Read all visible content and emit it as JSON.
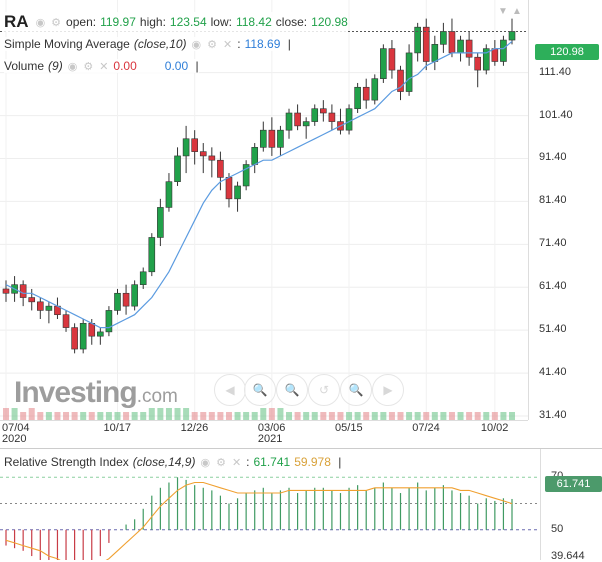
{
  "symbol": "RA",
  "ohlc": {
    "open_label": "open:",
    "open": "119.97",
    "high_label": "high:",
    "high": "123.54",
    "low_label": "low:",
    "low": "118.42",
    "close_label": "close:",
    "close": "120.98"
  },
  "sma": {
    "label": "Simple Moving Average",
    "params": "(close,10)",
    "value": "118.69"
  },
  "volume": {
    "label": "Volume",
    "params": "(9)",
    "value1": "0.00",
    "value2": "0.00"
  },
  "current_price": "120.98",
  "price_axis": [
    "111.40",
    "101.40",
    "91.40",
    "81.40",
    "71.40",
    "61.40",
    "51.40",
    "41.40",
    "31.40"
  ],
  "time_axis": [
    {
      "label": "07/04",
      "sub": "2020"
    },
    {
      "label": "10/17",
      "sub": ""
    },
    {
      "label": "12/26",
      "sub": ""
    },
    {
      "label": "03/06",
      "sub": "2021"
    },
    {
      "label": "05/15",
      "sub": ""
    },
    {
      "label": "07/24",
      "sub": ""
    },
    {
      "label": "10/02",
      "sub": ""
    }
  ],
  "rsi": {
    "label": "Relative Strength Index",
    "params": "(close,14,9)",
    "value": "61.741",
    "signal": "59.978",
    "current": "61.741",
    "axis": [
      "70",
      "50",
      "39.644"
    ]
  },
  "watermark": {
    "text": "Investing",
    "suffix": ".com"
  },
  "colors": {
    "up": "#21a14a",
    "down": "#d9363e",
    "sma": "#2f7ed8",
    "rsi_signal": "#f0a030",
    "price_tag": "#2daf5a"
  },
  "chart_data": {
    "type": "candlestick",
    "title": "RA",
    "ylim": [
      31.4,
      126
    ],
    "candles": [
      [
        61,
        63,
        58,
        60
      ],
      [
        60,
        64,
        58,
        62
      ],
      [
        62,
        63,
        57,
        59
      ],
      [
        59,
        61,
        56,
        58
      ],
      [
        58,
        59,
        54,
        56
      ],
      [
        56,
        58,
        53,
        57
      ],
      [
        57,
        59,
        54,
        55
      ],
      [
        55,
        56,
        51,
        52
      ],
      [
        52,
        53,
        46,
        47
      ],
      [
        47,
        54,
        46,
        53
      ],
      [
        53,
        54,
        48,
        50
      ],
      [
        50,
        52,
        48,
        51
      ],
      [
        51,
        57,
        50,
        56
      ],
      [
        56,
        61,
        55,
        60
      ],
      [
        60,
        62,
        55,
        57
      ],
      [
        57,
        63,
        56,
        62
      ],
      [
        62,
        66,
        61,
        65
      ],
      [
        65,
        74,
        64,
        73
      ],
      [
        73,
        82,
        71,
        80
      ],
      [
        80,
        88,
        79,
        86
      ],
      [
        86,
        94,
        85,
        92
      ],
      [
        92,
        99,
        88,
        96
      ],
      [
        96,
        98,
        90,
        93
      ],
      [
        93,
        95,
        88,
        92
      ],
      [
        92,
        94,
        87,
        91
      ],
      [
        91,
        93,
        84,
        87
      ],
      [
        87,
        88,
        80,
        82
      ],
      [
        82,
        86,
        79,
        85
      ],
      [
        85,
        91,
        84,
        90
      ],
      [
        90,
        95,
        88,
        94
      ],
      [
        94,
        100,
        93,
        98
      ],
      [
        98,
        101,
        92,
        94
      ],
      [
        94,
        99,
        92,
        98
      ],
      [
        98,
        103,
        96,
        102
      ],
      [
        102,
        104,
        98,
        99
      ],
      [
        99,
        101,
        96,
        100
      ],
      [
        100,
        104,
        99,
        103
      ],
      [
        103,
        105,
        100,
        102
      ],
      [
        102,
        104,
        98,
        100
      ],
      [
        100,
        103,
        97,
        98
      ],
      [
        98,
        104,
        97,
        103
      ],
      [
        103,
        109,
        102,
        108
      ],
      [
        108,
        110,
        103,
        105
      ],
      [
        105,
        111,
        104,
        110
      ],
      [
        110,
        118,
        109,
        117
      ],
      [
        117,
        119,
        110,
        112
      ],
      [
        112,
        113,
        105,
        107
      ],
      [
        107,
        118,
        106,
        116
      ],
      [
        116,
        123,
        114,
        122
      ],
      [
        122,
        124,
        112,
        114
      ],
      [
        114,
        120,
        112,
        118
      ],
      [
        118,
        123,
        116,
        121
      ],
      [
        121,
        124,
        115,
        116
      ],
      [
        116,
        120,
        114,
        119
      ],
      [
        119,
        121,
        113,
        115
      ],
      [
        115,
        116,
        108,
        112
      ],
      [
        112,
        118,
        111,
        117
      ],
      [
        117,
        119,
        113,
        114
      ],
      [
        114,
        120,
        113,
        119
      ],
      [
        119,
        124,
        118,
        121
      ]
    ],
    "sma": [
      62,
      61,
      60,
      60,
      59,
      58,
      57,
      56,
      55,
      54,
      53,
      52,
      52,
      53,
      54,
      55,
      57,
      59,
      62,
      65,
      69,
      73,
      77,
      81,
      84,
      86,
      87,
      88,
      89,
      90,
      91,
      91,
      92,
      93,
      94,
      95,
      96,
      97,
      98,
      99,
      100,
      101,
      102,
      103,
      105,
      107,
      108,
      110,
      111,
      113,
      114,
      115,
      116,
      116,
      116,
      116,
      116,
      117,
      117,
      118.69
    ],
    "volume": [
      3,
      3,
      2,
      3,
      2,
      2,
      2,
      2,
      2,
      2,
      2,
      2,
      2,
      2,
      2,
      2,
      2,
      3,
      3,
      3,
      3,
      3,
      2,
      2,
      2,
      2,
      2,
      2,
      2,
      2,
      3,
      3,
      3,
      2,
      2,
      2,
      2,
      2,
      2,
      2,
      2,
      2,
      2,
      2,
      2,
      2,
      2,
      2,
      2,
      2,
      2,
      2,
      2,
      2,
      2,
      2,
      2,
      2,
      2,
      2
    ],
    "rsi": [
      44,
      43,
      42,
      40,
      38,
      36,
      35,
      33,
      30,
      35,
      38,
      40,
      45,
      50,
      52,
      54,
      58,
      63,
      66,
      68,
      70,
      69,
      67,
      66,
      65,
      63,
      60,
      62,
      64,
      65,
      66,
      64,
      65,
      66,
      64,
      65,
      66,
      66,
      65,
      64,
      66,
      67,
      65,
      66,
      68,
      66,
      64,
      66,
      68,
      65,
      66,
      67,
      65,
      64,
      63,
      60,
      62,
      61,
      62,
      61.741
    ],
    "rsi_signal": [
      46,
      45,
      44,
      43,
      42,
      40,
      39,
      37,
      35,
      35,
      36,
      37,
      39,
      42,
      45,
      48,
      51,
      55,
      59,
      62,
      65,
      67,
      68,
      68,
      67,
      66,
      65,
      64,
      64,
      64,
      64,
      64,
      64,
      65,
      65,
      65,
      65,
      65,
      65,
      65,
      65,
      65,
      65,
      66,
      66,
      66,
      66,
      66,
      66,
      66,
      66,
      66,
      66,
      65,
      65,
      64,
      63,
      62,
      61,
      59.978
    ]
  }
}
